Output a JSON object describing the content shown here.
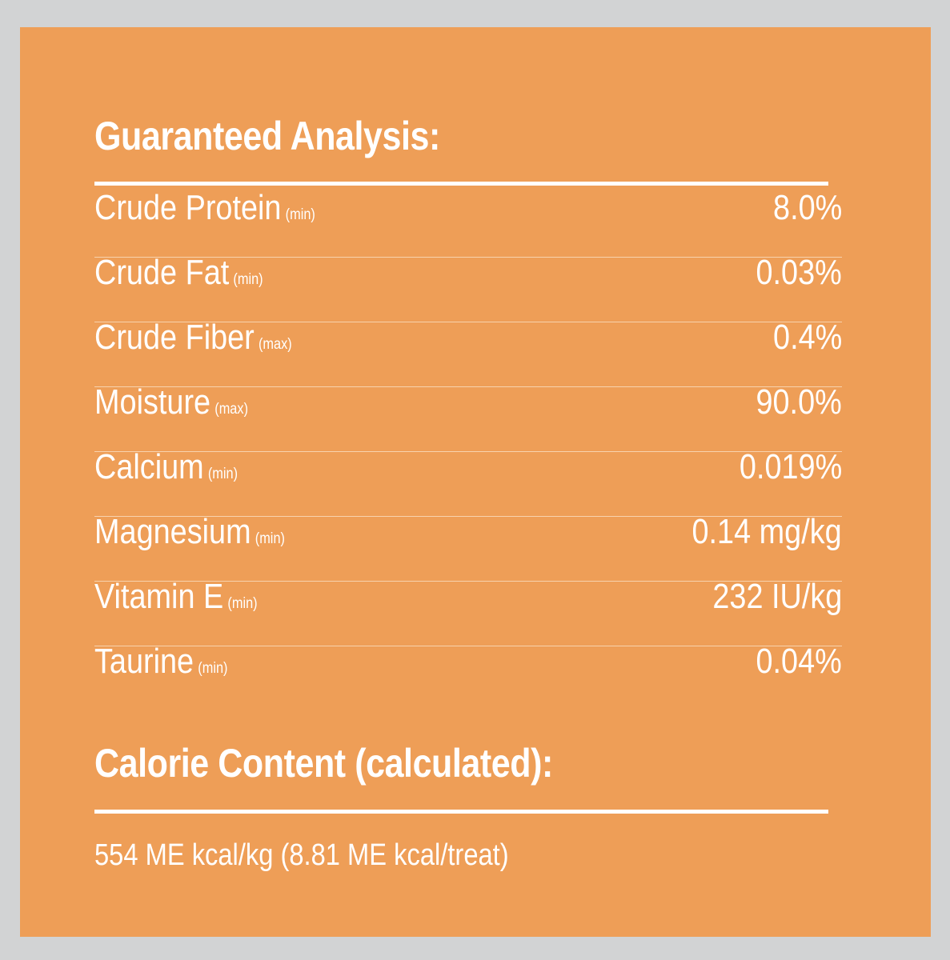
{
  "guaranteed_analysis": {
    "heading": "Guaranteed Analysis:",
    "rows": [
      {
        "name": "Crude Protein",
        "qualifier": "(min)",
        "value": "8.0%"
      },
      {
        "name": "Crude Fat",
        "qualifier": "(min)",
        "value": "0.03%"
      },
      {
        "name": "Crude Fiber",
        "qualifier": "(max)",
        "value": "0.4%"
      },
      {
        "name": "Moisture",
        "qualifier": "(max)",
        "value": "90.0%"
      },
      {
        "name": "Calcium",
        "qualifier": "(min)",
        "value": "0.019%"
      },
      {
        "name": "Magnesium",
        "qualifier": "(min)",
        "value": "0.14 mg/kg"
      },
      {
        "name": "Vitamin E",
        "qualifier": "(min)",
        "value": "232 IU/kg"
      },
      {
        "name": "Taurine",
        "qualifier": "(min)",
        "value": "0.04%"
      }
    ]
  },
  "calorie_content": {
    "heading": "Calorie Content (calculated):",
    "text": "554 ME kcal/kg (8.81 ME kcal/treat)"
  },
  "colors": {
    "panel_background": "#ee9e57",
    "outer_border": "#d2d3d4",
    "text": "#ffffff"
  }
}
